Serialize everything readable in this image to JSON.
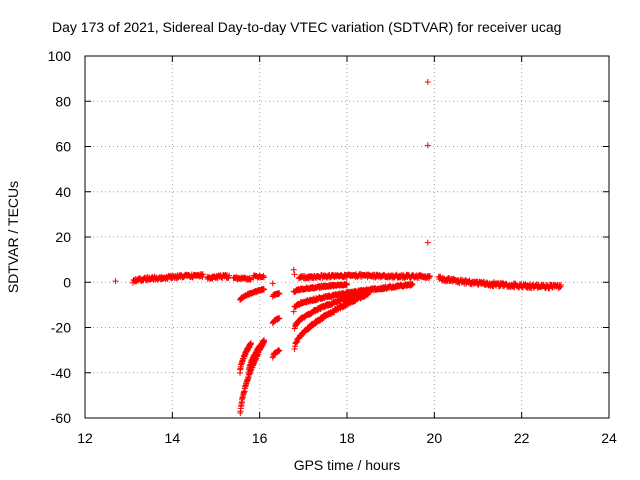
{
  "chart_data": {
    "type": "scatter",
    "title": "Day 173 of 2021, Sidereal Day-to-day VTEC variation (SDTVAR) for receiver ucag",
    "xlabel": "GPS time / hours",
    "ylabel": "SDTVAR / TECUs",
    "xlim": [
      12,
      24
    ],
    "ylim": [
      -60,
      100
    ],
    "xticks": [
      "12",
      "14",
      "16",
      "18",
      "20",
      "22",
      "24"
    ],
    "yticks": [
      "100",
      "80",
      "60",
      "40",
      "20",
      "0",
      "-20",
      "-40",
      "-60"
    ],
    "grid": true,
    "marker": "+",
    "color": "#ff0000",
    "segments": [
      {
        "name": "baseline-1",
        "x0": 13.1,
        "x1": 14.7,
        "y0": 0.5,
        "y1": 3.0,
        "step": 0.012,
        "spread": 1.5
      },
      {
        "name": "baseline-2",
        "x0": 14.8,
        "x1": 15.3,
        "y0": 2.0,
        "y1": 2.5,
        "step": 0.012,
        "spread": 1.5
      },
      {
        "name": "baseline-3",
        "x0": 15.4,
        "x1": 15.8,
        "y0": 2.0,
        "y1": 1.5,
        "step": 0.015,
        "spread": 1.0
      },
      {
        "name": "baseline-4",
        "x0": 15.85,
        "x1": 16.1,
        "y0": 2.5,
        "y1": 2.5,
        "step": 0.015,
        "spread": 1.0
      },
      {
        "name": "baseline-5",
        "x0": 16.9,
        "x1": 18.4,
        "y0": 2.0,
        "y1": 3.0,
        "step": 0.012,
        "spread": 1.2
      },
      {
        "name": "baseline-6",
        "x0": 18.4,
        "x1": 19.9,
        "y0": 3.0,
        "y1": 2.5,
        "step": 0.012,
        "spread": 1.5
      },
      {
        "name": "baseline-7",
        "x0": 20.1,
        "x1": 21.5,
        "y0": 2.0,
        "y1": -1.0,
        "step": 0.012,
        "spread": 1.8
      },
      {
        "name": "baseline-8",
        "x0": 21.5,
        "x1": 22.9,
        "y0": -1.0,
        "y1": -2.0,
        "step": 0.012,
        "spread": 1.8
      },
      {
        "name": "curve-1",
        "x0": 15.55,
        "x1": 16.1,
        "y0": -60,
        "y1": -26,
        "step": 0.006,
        "spread": 1.0
      },
      {
        "name": "curve-2",
        "x0": 15.55,
        "x1": 15.8,
        "y0": -40,
        "y1": -27,
        "step": 0.006,
        "spread": 1.0
      },
      {
        "name": "curve-3",
        "x0": 15.75,
        "x1": 16.1,
        "y0": -40,
        "y1": -26,
        "step": 0.006,
        "spread": 1.0
      },
      {
        "name": "curve-4",
        "x0": 15.55,
        "x1": 16.1,
        "y0": -8,
        "y1": -3,
        "step": 0.01,
        "spread": 0.6
      },
      {
        "name": "curve-5",
        "x0": 16.3,
        "x1": 16.45,
        "y0": -33,
        "y1": -30,
        "step": 0.01,
        "spread": 0.8
      },
      {
        "name": "curve-6",
        "x0": 16.3,
        "x1": 16.45,
        "y0": -18,
        "y1": -16,
        "step": 0.01,
        "spread": 0.8
      },
      {
        "name": "curve-7",
        "x0": 16.3,
        "x1": 16.45,
        "y0": -6,
        "y1": -5,
        "step": 0.01,
        "spread": 0.6
      },
      {
        "name": "curve-8",
        "x0": 16.8,
        "x1": 18.5,
        "y0": -29,
        "y1": -5,
        "step": 0.01,
        "spread": 1.2
      },
      {
        "name": "curve-9",
        "x0": 16.8,
        "x1": 18.3,
        "y0": -20,
        "y1": -5,
        "step": 0.01,
        "spread": 1.0
      },
      {
        "name": "curve-10",
        "x0": 16.8,
        "x1": 19.5,
        "y0": -11,
        "y1": -1,
        "step": 0.01,
        "spread": 1.0
      },
      {
        "name": "curve-11",
        "x0": 16.8,
        "x1": 18.0,
        "y0": -4,
        "y1": -1,
        "step": 0.01,
        "spread": 0.8
      }
    ],
    "points": [
      {
        "x": 12.7,
        "y": 0.5
      },
      {
        "x": 16.3,
        "y": -0.5
      },
      {
        "x": 16.78,
        "y": 5.5
      },
      {
        "x": 16.78,
        "y": -4
      },
      {
        "x": 16.78,
        "y": -13
      },
      {
        "x": 16.8,
        "y": 3.5
      },
      {
        "x": 19.85,
        "y": 88.5
      },
      {
        "x": 19.85,
        "y": 60.5
      },
      {
        "x": 19.85,
        "y": 17.5
      }
    ]
  }
}
